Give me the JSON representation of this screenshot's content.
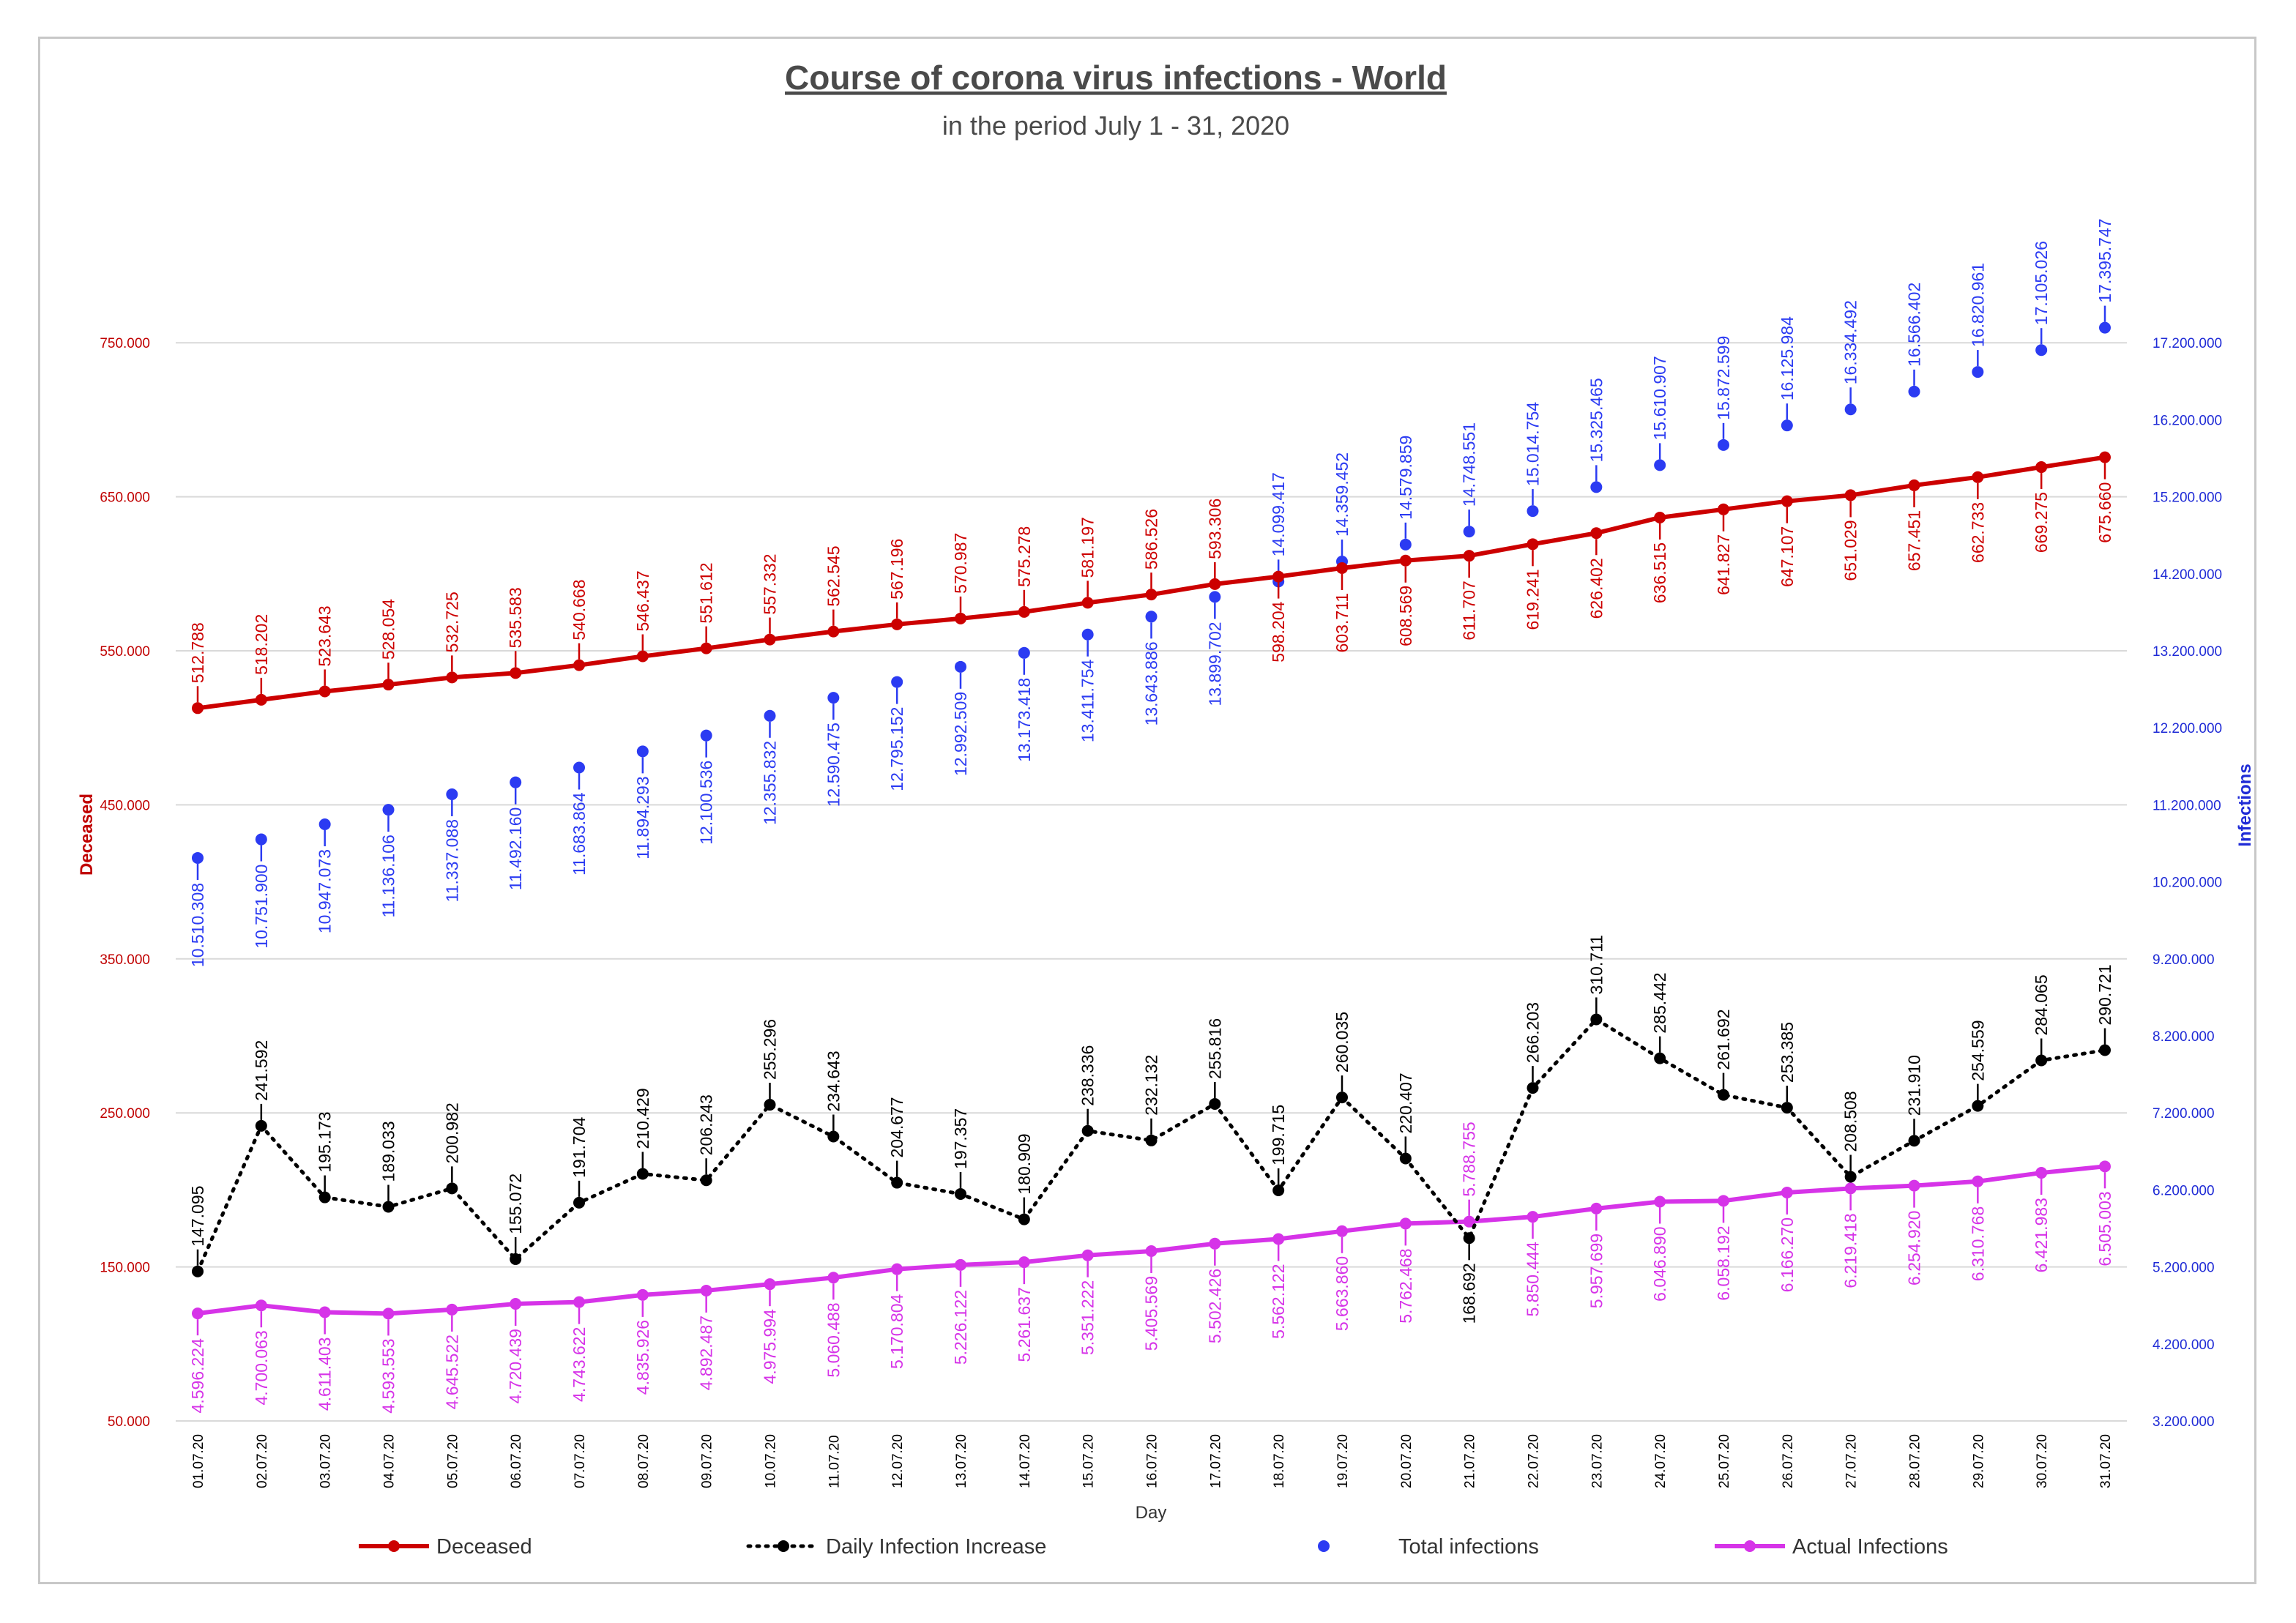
{
  "chart_data": {
    "type": "line",
    "title": "Course of corona virus infections - World",
    "subtitle": "in the period July 1 - 31, 2020",
    "xlabel": "Day",
    "ylabel_left": "Deceased",
    "ylabel_right": "Infections",
    "y_left_lim": [
      50000,
      800000
    ],
    "y_right_lim": [
      3200000,
      18200000
    ],
    "y_left_ticks": [
      "50.000",
      "150.000",
      "250.000",
      "350.000",
      "450.000",
      "550.000",
      "650.000",
      "750.000"
    ],
    "y_right_ticks": [
      "3.200.000",
      "4.200.000",
      "5.200.000",
      "6.200.000",
      "7.200.000",
      "8.200.000",
      "9.200.000",
      "10.200.000",
      "11.200.000",
      "12.200.000",
      "13.200.000",
      "14.200.000",
      "15.200.000",
      "16.200.000",
      "17.200.000"
    ],
    "categories": [
      "01.07.20",
      "02.07.20",
      "03.07.20",
      "04.07.20",
      "05.07.20",
      "06.07.20",
      "07.07.20",
      "08.07.20",
      "09.07.20",
      "10.07.20",
      "11.07.20",
      "12.07.20",
      "13.07.20",
      "14.07.20",
      "15.07.20",
      "16.07.20",
      "17.07.20",
      "18.07.20",
      "19.07.20",
      "20.07.20",
      "21.07.20",
      "22.07.20",
      "23.07.20",
      "24.07.20",
      "25.07.20",
      "26.07.20",
      "27.07.20",
      "28.07.20",
      "29.07.20",
      "30.07.20",
      "31.07.20"
    ],
    "series": [
      {
        "name": "Deceased",
        "axis": "left",
        "color": "#cc0000",
        "style": "solid",
        "values": [
          512788,
          518202,
          523643,
          528054,
          532725,
          535583,
          540668,
          546437,
          551612,
          557332,
          562545,
          567196,
          570987,
          575278,
          581197,
          586526,
          593306,
          598204,
          603711,
          608569,
          611707,
          619241,
          626402,
          636515,
          641827,
          647107,
          651029,
          657451,
          662733,
          669275,
          675660
        ],
        "labels": [
          "512.788",
          "518.202",
          "523.643",
          "528.054",
          "532.725",
          "535.583",
          "540.668",
          "546.437",
          "551.612",
          "557.332",
          "562.545",
          "567.196",
          "570.987",
          "575.278",
          "581.197",
          "586.526",
          "593.306",
          "598.204",
          "603.711",
          "608.569",
          "611.707",
          "619.241",
          "626.402",
          "636.515",
          "641.827",
          "647.107",
          "651.029",
          "657.451",
          "662.733",
          "669.275",
          "675.660"
        ]
      },
      {
        "name": "Daily Infection Increase",
        "axis": "left",
        "color": "#000000",
        "style": "dotted",
        "values": [
          147095,
          241592,
          195173,
          189033,
          200982,
          155072,
          191704,
          210429,
          206243,
          255296,
          234643,
          204677,
          197357,
          180909,
          238336,
          232132,
          255816,
          199715,
          260035,
          220407,
          168692,
          266203,
          310711,
          285442,
          261692,
          253385,
          208508,
          231910,
          254559,
          284065,
          290721
        ],
        "labels": [
          "147.095",
          "241.592",
          "195.173",
          "189.033",
          "200.982",
          "155.072",
          "191.704",
          "210.429",
          "206.243",
          "255.296",
          "234.643",
          "204.677",
          "197.357",
          "180.909",
          "238.336",
          "232.132",
          "255.816",
          "199.715",
          "260.035",
          "220.407",
          "168.692",
          "266.203",
          "310.711",
          "285.442",
          "261.692",
          "253.385",
          "208.508",
          "231.910",
          "254.559",
          "284.065",
          "290.721"
        ]
      },
      {
        "name": "Total infections",
        "axis": "right",
        "color": "#2b3bf2",
        "style": "markers",
        "values": [
          10510308,
          10751900,
          10947073,
          11136106,
          11337088,
          11492160,
          11683864,
          11894293,
          12100536,
          12355832,
          12590475,
          12795152,
          12992509,
          13173418,
          13411754,
          13643886,
          13899702,
          14099417,
          14359452,
          14579859,
          14748551,
          15014754,
          15325465,
          15610907,
          15872599,
          16125984,
          16334492,
          16566402,
          16820961,
          17105026,
          17395747
        ],
        "labels": [
          "10.510.308",
          "10.751.900",
          "10.947.073",
          "11.136.106",
          "11.337.088",
          "11.492.160",
          "11.683.864",
          "11.894.293",
          "12.100.536",
          "12.355.832",
          "12.590.475",
          "12.795.152",
          "12.992.509",
          "13.173.418",
          "13.411.754",
          "13.643.886",
          "13.899.702",
          "14.099.417",
          "14.359.452",
          "14.579.859",
          "14.748.551",
          "15.014.754",
          "15.325.465",
          "15.610.907",
          "15.872.599",
          "16.125.984",
          "16.334.492",
          "16.566.402",
          "16.820.961",
          "17.105.026",
          "17.395.747"
        ]
      },
      {
        "name": "Actual Infections",
        "axis": "right",
        "color": "#d633e8",
        "style": "solid",
        "values": [
          4596224,
          4700063,
          4611403,
          4593553,
          4645522,
          4720439,
          4743622,
          4835926,
          4892487,
          4975994,
          5060488,
          5170804,
          5226122,
          5261637,
          5351222,
          5405569,
          5502426,
          5562122,
          5663860,
          5762468,
          5788755,
          5850444,
          5957699,
          6046890,
          6058192,
          6166270,
          6219418,
          6254920,
          6310768,
          6421983,
          6505003
        ],
        "labels": [
          "4.596.224",
          "4.700.063",
          "4.611.403",
          "4.593.553",
          "4.645.522",
          "4.720.439",
          "4.743.622",
          "4.835.926",
          "4.892.487",
          "4.975.994",
          "5.060.488",
          "5.170.804",
          "5.226.122",
          "5.261.637",
          "5.351.222",
          "5.405.569",
          "5.502.426",
          "5.562.122",
          "5.663.860",
          "5.762.468",
          "5.788.755",
          "5.850.444",
          "5.957.699",
          "6.046.890",
          "6.058.192",
          "6.166.270",
          "6.219.418",
          "6.254.920",
          "6.310.768",
          "6.421.983",
          "6.505.003"
        ]
      }
    ],
    "legend": [
      "Deceased",
      "Daily Infection Increase",
      "Total infections",
      "Actual Infections"
    ],
    "legend_position": "bottom",
    "grid": true
  }
}
